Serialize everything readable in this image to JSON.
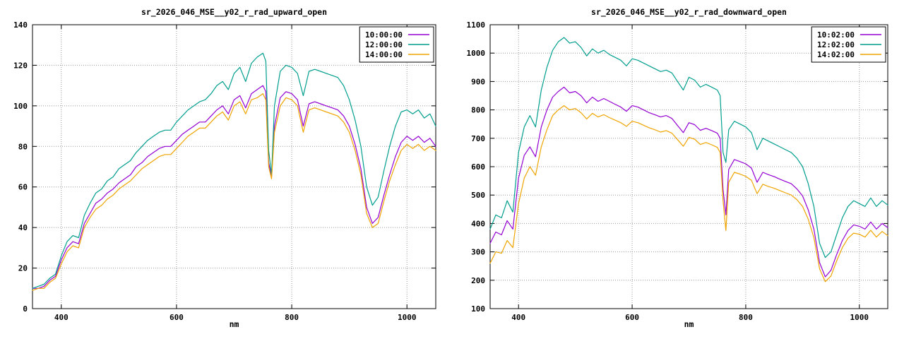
{
  "chart_data": [
    {
      "type": "line",
      "title": "sr_2026_046_MSE__y02_r_rad_upward_open",
      "xlabel": "nm",
      "xlim": [
        350,
        1050
      ],
      "ylim": [
        0,
        140
      ],
      "xticks": [
        400,
        600,
        800,
        1000
      ],
      "yticks": [
        0,
        20,
        40,
        60,
        80,
        100,
        120,
        140
      ],
      "grid": true,
      "legend_position": "top-right",
      "x": [
        350,
        360,
        370,
        380,
        390,
        400,
        410,
        420,
        430,
        440,
        450,
        460,
        470,
        480,
        490,
        500,
        510,
        520,
        530,
        540,
        550,
        560,
        570,
        580,
        590,
        600,
        610,
        620,
        630,
        640,
        650,
        660,
        670,
        680,
        690,
        700,
        710,
        720,
        730,
        740,
        750,
        755,
        760,
        765,
        770,
        780,
        790,
        800,
        810,
        820,
        830,
        840,
        850,
        860,
        870,
        880,
        890,
        900,
        910,
        920,
        930,
        940,
        950,
        960,
        970,
        980,
        990,
        1000,
        1010,
        1020,
        1030,
        1040,
        1050
      ],
      "series": [
        {
          "name": "10:00:00",
          "color": "#9400d3",
          "values": [
            10,
            10,
            11,
            14,
            16,
            24,
            30,
            33,
            32,
            42,
            47,
            52,
            54,
            57,
            59,
            62,
            64,
            66,
            70,
            72,
            75,
            77,
            79,
            80,
            80,
            83,
            86,
            88,
            90,
            92,
            92,
            95,
            98,
            100,
            96,
            103,
            105,
            99,
            106,
            108,
            110,
            107,
            72,
            65,
            90,
            104,
            107,
            106,
            103,
            90,
            101,
            102,
            101,
            100,
            99,
            98,
            95,
            90,
            81,
            69,
            50,
            42,
            45,
            56,
            66,
            75,
            82,
            85,
            83,
            85,
            82,
            84,
            80
          ]
        },
        {
          "name": "12:00:00",
          "color": "#009e8e",
          "values": [
            10,
            11,
            12,
            15,
            17,
            26,
            33,
            36,
            35,
            46,
            52,
            57,
            59,
            63,
            65,
            69,
            71,
            73,
            77,
            80,
            83,
            85,
            87,
            88,
            88,
            92,
            95,
            98,
            100,
            102,
            103,
            106,
            110,
            112,
            108,
            116,
            119,
            112,
            121,
            124,
            126,
            122,
            78,
            66,
            100,
            117,
            120,
            119,
            116,
            105,
            117,
            118,
            117,
            116,
            115,
            114,
            110,
            103,
            93,
            80,
            60,
            51,
            55,
            68,
            80,
            90,
            97,
            98,
            96,
            98,
            94,
            96,
            90
          ]
        },
        {
          "name": "14:00:00",
          "color": "#efa400",
          "values": [
            9,
            10,
            10,
            13,
            15,
            22,
            28,
            31,
            30,
            40,
            45,
            49,
            51,
            54,
            56,
            59,
            61,
            63,
            66,
            69,
            71,
            73,
            75,
            76,
            76,
            79,
            82,
            85,
            87,
            89,
            89,
            92,
            95,
            97,
            93,
            100,
            102,
            96,
            103,
            104,
            106,
            103,
            70,
            64,
            87,
            100,
            104,
            103,
            100,
            87,
            98,
            99,
            98,
            97,
            96,
            95,
            92,
            87,
            78,
            66,
            47,
            40,
            42,
            53,
            63,
            71,
            78,
            81,
            79,
            81,
            78,
            80,
            78
          ]
        }
      ]
    },
    {
      "type": "line",
      "title": "sr_2026_046_MSE__y02_r_rad_downward_open",
      "xlabel": "nm",
      "xlim": [
        350,
        1050
      ],
      "ylim": [
        100,
        1100
      ],
      "xticks": [
        400,
        600,
        800,
        1000
      ],
      "yticks": [
        100,
        200,
        300,
        400,
        500,
        600,
        700,
        800,
        900,
        1000,
        1100
      ],
      "grid": true,
      "legend_position": "top-right",
      "x": [
        350,
        360,
        370,
        380,
        390,
        400,
        410,
        420,
        430,
        440,
        450,
        460,
        470,
        480,
        490,
        500,
        510,
        520,
        530,
        540,
        550,
        560,
        570,
        580,
        590,
        600,
        610,
        620,
        630,
        640,
        650,
        660,
        670,
        680,
        690,
        700,
        710,
        720,
        730,
        740,
        750,
        755,
        760,
        765,
        770,
        780,
        790,
        800,
        810,
        820,
        830,
        840,
        850,
        860,
        870,
        880,
        890,
        900,
        910,
        920,
        930,
        940,
        950,
        960,
        970,
        980,
        990,
        1000,
        1010,
        1020,
        1030,
        1040,
        1050
      ],
      "series": [
        {
          "name": "10:02:00",
          "color": "#9400d3",
          "values": [
            330,
            370,
            360,
            410,
            380,
            560,
            640,
            670,
            635,
            740,
            800,
            845,
            865,
            880,
            860,
            865,
            850,
            825,
            845,
            830,
            840,
            830,
            820,
            810,
            795,
            815,
            810,
            800,
            790,
            783,
            775,
            780,
            770,
            745,
            720,
            755,
            748,
            728,
            735,
            727,
            718,
            700,
            520,
            430,
            590,
            625,
            618,
            610,
            595,
            545,
            580,
            572,
            565,
            556,
            548,
            540,
            522,
            497,
            448,
            380,
            262,
            212,
            235,
            290,
            340,
            375,
            395,
            390,
            380,
            405,
            380,
            400,
            385
          ]
        },
        {
          "name": "12:02:00",
          "color": "#009e8e",
          "values": [
            380,
            430,
            420,
            480,
            440,
            650,
            740,
            780,
            740,
            870,
            950,
            1010,
            1040,
            1055,
            1035,
            1040,
            1020,
            990,
            1015,
            1000,
            1010,
            995,
            985,
            975,
            955,
            980,
            975,
            965,
            955,
            945,
            935,
            940,
            930,
            900,
            870,
            915,
            905,
            880,
            890,
            880,
            870,
            850,
            650,
            615,
            730,
            760,
            750,
            740,
            720,
            660,
            700,
            690,
            680,
            670,
            660,
            650,
            630,
            600,
            540,
            460,
            330,
            280,
            300,
            360,
            420,
            460,
            480,
            470,
            460,
            490,
            460,
            480,
            465
          ]
        },
        {
          "name": "14:02:00",
          "color": "#efa400",
          "values": [
            260,
            300,
            295,
            340,
            315,
            470,
            560,
            600,
            570,
            670,
            730,
            780,
            800,
            815,
            800,
            805,
            790,
            768,
            788,
            775,
            783,
            773,
            764,
            755,
            742,
            760,
            755,
            746,
            737,
            730,
            722,
            727,
            718,
            695,
            672,
            703,
            697,
            678,
            685,
            677,
            668,
            650,
            480,
            375,
            545,
            580,
            574,
            566,
            552,
            505,
            538,
            530,
            524,
            516,
            508,
            500,
            484,
            460,
            415,
            350,
            240,
            195,
            215,
            268,
            315,
            348,
            366,
            362,
            352,
            376,
            352,
            372,
            357
          ]
        }
      ]
    }
  ]
}
